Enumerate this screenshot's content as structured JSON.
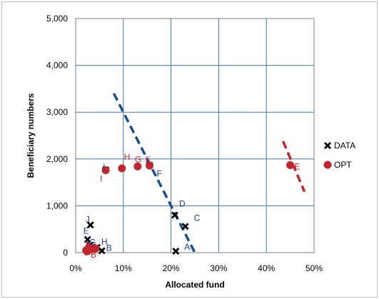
{
  "chart_data": {
    "type": "scatter",
    "title": "",
    "xlabel": "Allocated fund",
    "ylabel": "Beneficiary numbers",
    "xlim": [
      0,
      0.5
    ],
    "ylim": [
      0,
      5000
    ],
    "x_ticks": [
      0,
      0.1,
      0.2,
      0.3,
      0.4,
      0.5
    ],
    "x_tick_labels": [
      "0%",
      "10%",
      "20%",
      "30%",
      "40%",
      "50%"
    ],
    "y_ticks": [
      0,
      1000,
      2000,
      3000,
      4000,
      5000
    ],
    "y_tick_labels": [
      "0",
      "1,000",
      "2,000",
      "3,000",
      "4,000",
      "5,000"
    ],
    "grid": {
      "x": true,
      "y": true
    },
    "legend_position": "right",
    "colors": {
      "data": "#000000",
      "opt": "#c0272d",
      "data_label": "#1f3a93",
      "opt_label": "#c0272d",
      "trend_blue": "#1f4e8c",
      "trend_red": "#c0272d",
      "grid": "#4a72b0",
      "plot_border": "#7f7f7f",
      "outer_border": "#bfbfbf"
    },
    "series": [
      {
        "name": "DATA",
        "marker": "x",
        "points": [
          {
            "label": "A",
            "x": 0.21,
            "y": 30
          },
          {
            "label": "B",
            "x": 0.055,
            "y": 40
          },
          {
            "label": "C",
            "x": 0.23,
            "y": 560
          },
          {
            "label": "D",
            "x": 0.208,
            "y": 800
          },
          {
            "label": "E",
            "x": 0.025,
            "y": 280
          },
          {
            "label": "F",
            "x": 0.155,
            "y": 1870
          },
          {
            "label": "G",
            "x": 0.03,
            "y": 160
          },
          {
            "label": "H",
            "x": 0.045,
            "y": 110
          },
          {
            "label": "I",
            "x": 0.063,
            "y": 1770
          },
          {
            "label": "J",
            "x": 0.031,
            "y": 590
          }
        ]
      },
      {
        "name": "OPT",
        "marker": "circle",
        "points": [
          {
            "label": "A",
            "x": 0.022,
            "y": 50
          },
          {
            "label": "B",
            "x": 0.042,
            "y": 90
          },
          {
            "label": "C",
            "x": 0.028,
            "y": 120
          },
          {
            "label": "D",
            "x": 0.035,
            "y": 100
          },
          {
            "label": "E",
            "x": 0.45,
            "y": 1870
          },
          {
            "label": "F",
            "x": 0.155,
            "y": 1860
          },
          {
            "label": "G",
            "x": 0.13,
            "y": 1840
          },
          {
            "label": "H",
            "x": 0.097,
            "y": 1800
          },
          {
            "label": "I",
            "x": 0.063,
            "y": 1760
          },
          {
            "label": "J",
            "x": 0.025,
            "y": 30
          }
        ]
      }
    ],
    "trend_lines": [
      {
        "color": "trend_blue",
        "x1": 0.08,
        "y1": 3400,
        "x2": 0.25,
        "y2": 0
      },
      {
        "color": "trend_red",
        "x1": 0.435,
        "y1": 2380,
        "x2": 0.48,
        "y2": 1300
      }
    ],
    "legend": [
      {
        "label": "DATA",
        "marker": "x"
      },
      {
        "label": "OPT",
        "marker": "circle"
      }
    ]
  }
}
